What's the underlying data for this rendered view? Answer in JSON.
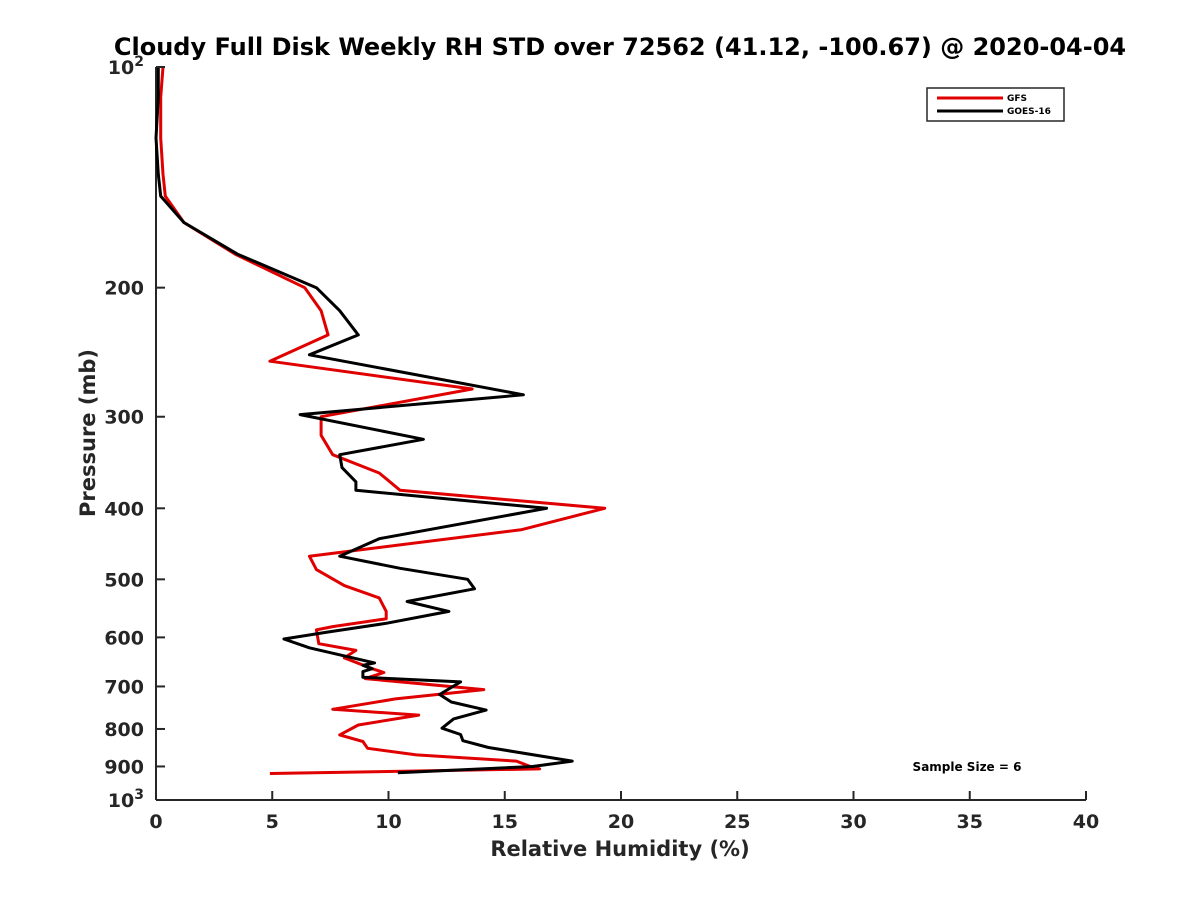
{
  "chart_data": {
    "type": "line",
    "title": "Cloudy Full Disk Weekly RH STD over 72562 (41.12, -100.67) @ 2020-04-04",
    "xlabel": "Relative Humidity (%)",
    "ylabel": "Pressure (mb)",
    "xlim": [
      0,
      40
    ],
    "ylim": [
      100,
      1000
    ],
    "y_scale": "log",
    "y_reversed": true,
    "x_ticks": [
      "0",
      "5",
      "10",
      "15",
      "20",
      "25",
      "30",
      "35",
      "40"
    ],
    "y_ticks": [
      {
        "value": 100,
        "base": "10",
        "exp": "2"
      },
      {
        "value": 200,
        "label": "200"
      },
      {
        "value": 300,
        "label": "300"
      },
      {
        "value": 400,
        "label": "400"
      },
      {
        "value": 500,
        "label": "500"
      },
      {
        "value": 600,
        "label": "600"
      },
      {
        "value": 700,
        "label": "700"
      },
      {
        "value": 800,
        "label": "800"
      },
      {
        "value": 900,
        "label": "900"
      },
      {
        "value": 1000,
        "base": "10",
        "exp": "3"
      }
    ],
    "grid": false,
    "legend_position": "top-right",
    "annotation": "Sample Size = 6",
    "series": [
      {
        "name": "GFS",
        "color": "#e00000",
        "points": [
          [
            0.3,
            100
          ],
          [
            0.2,
            110
          ],
          [
            0.2,
            125
          ],
          [
            0.3,
            140
          ],
          [
            0.4,
            150
          ],
          [
            1.2,
            163
          ],
          [
            3.4,
            180
          ],
          [
            6.4,
            200
          ],
          [
            7.1,
            215
          ],
          [
            7.4,
            232
          ],
          [
            4.9,
            252
          ],
          [
            13.6,
            275
          ],
          [
            7.1,
            300
          ],
          [
            7.1,
            318
          ],
          [
            7.6,
            338
          ],
          [
            9.6,
            358
          ],
          [
            10.5,
            378
          ],
          [
            19.3,
            400
          ],
          [
            15.7,
            428
          ],
          [
            6.6,
            465
          ],
          [
            6.9,
            485
          ],
          [
            8.1,
            510
          ],
          [
            9.6,
            530
          ],
          [
            9.9,
            553
          ],
          [
            9.9,
            566
          ],
          [
            7.6,
            580
          ],
          [
            6.9,
            586
          ],
          [
            7.0,
            612
          ],
          [
            8.6,
            625
          ],
          [
            8.1,
            640
          ],
          [
            9.3,
            662
          ],
          [
            9.8,
            670
          ],
          [
            9.0,
            683
          ],
          [
            14.1,
            707
          ],
          [
            10.3,
            728
          ],
          [
            7.6,
            752
          ],
          [
            11.3,
            766
          ],
          [
            8.7,
            790
          ],
          [
            7.9,
            815
          ],
          [
            8.9,
            832
          ],
          [
            9.1,
            850
          ],
          [
            11.2,
            868
          ],
          [
            15.5,
            885
          ],
          [
            16.1,
            900
          ],
          [
            16.5,
            907
          ],
          [
            4.9,
            920
          ]
        ]
      },
      {
        "name": "GOES-16",
        "color": "#000000",
        "points": [
          [
            0.1,
            100
          ],
          [
            0.1,
            110
          ],
          [
            0.0,
            125
          ],
          [
            0.1,
            140
          ],
          [
            0.2,
            150
          ],
          [
            1.2,
            163
          ],
          [
            3.5,
            180
          ],
          [
            6.9,
            200
          ],
          [
            7.9,
            215
          ],
          [
            8.7,
            232
          ],
          [
            6.6,
            247
          ],
          [
            15.8,
            280
          ],
          [
            6.2,
            298
          ],
          [
            11.5,
            322
          ],
          [
            7.9,
            338
          ],
          [
            8.0,
            352
          ],
          [
            8.6,
            368
          ],
          [
            8.6,
            378
          ],
          [
            16.8,
            400
          ],
          [
            9.6,
            440
          ],
          [
            7.9,
            465
          ],
          [
            10.5,
            483
          ],
          [
            13.4,
            500
          ],
          [
            13.7,
            515
          ],
          [
            10.8,
            536
          ],
          [
            12.6,
            553
          ],
          [
            9.9,
            574
          ],
          [
            7.4,
            590
          ],
          [
            5.5,
            603
          ],
          [
            6.6,
            620
          ],
          [
            9.4,
            650
          ],
          [
            8.9,
            655
          ],
          [
            9.3,
            662
          ],
          [
            8.9,
            668
          ],
          [
            8.9,
            680
          ],
          [
            13.1,
            690
          ],
          [
            12.2,
            718
          ],
          [
            12.7,
            735
          ],
          [
            14.2,
            754
          ],
          [
            12.8,
            775
          ],
          [
            12.3,
            798
          ],
          [
            13.1,
            814
          ],
          [
            13.2,
            830
          ],
          [
            14.3,
            848
          ],
          [
            17.9,
            885
          ],
          [
            16.2,
            900
          ],
          [
            10.4,
            918
          ]
        ]
      }
    ]
  }
}
